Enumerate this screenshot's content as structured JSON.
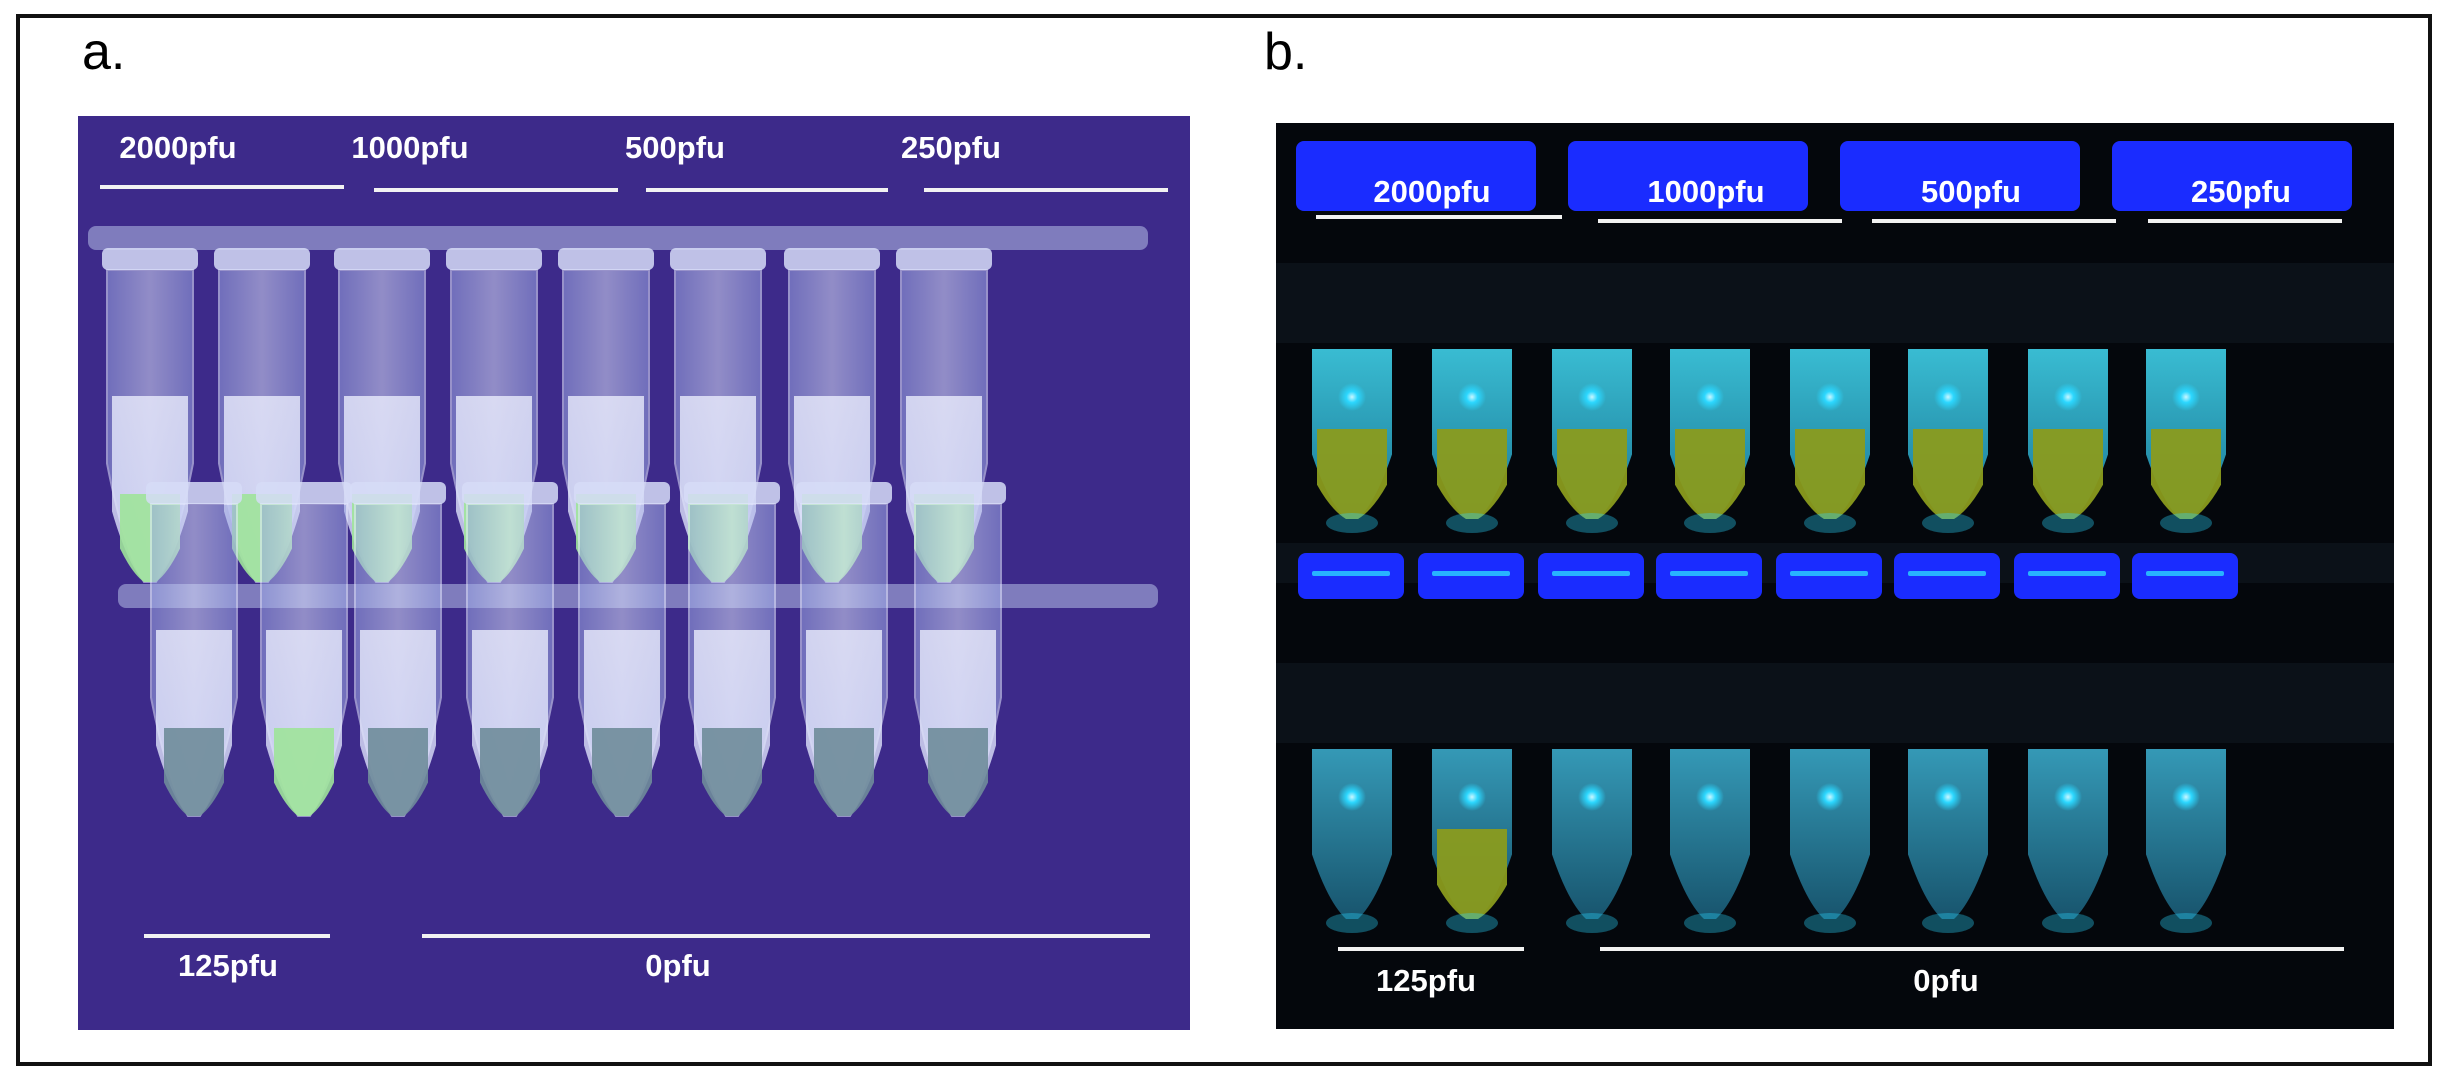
{
  "figure": {
    "panel_a": {
      "letter": "a.",
      "top_labels": [
        "2000pfu",
        "1000pfu",
        "500pfu",
        "250pfu"
      ],
      "bottom_labels": [
        "125pfu",
        "0pfu"
      ]
    },
    "panel_b": {
      "letter": "b.",
      "top_labels": [
        "2000pfu",
        "1000pfu",
        "500pfu",
        "250pfu"
      ],
      "bottom_labels": [
        "125pfu",
        "0pfu"
      ]
    },
    "colors": {
      "panel_a_background": "#3d2a8a",
      "panel_a_tube": "#c9d3f4",
      "panel_a_positive": "#9ee39a",
      "panel_a_negative": "#6f8c9a",
      "panel_b_background": "#04070c",
      "panel_b_cap": "#1a2cff",
      "panel_b_tube": "#39b9d6",
      "panel_b_positive": "#8a9b1e",
      "panel_b_glow": "#2bd7ff"
    }
  }
}
